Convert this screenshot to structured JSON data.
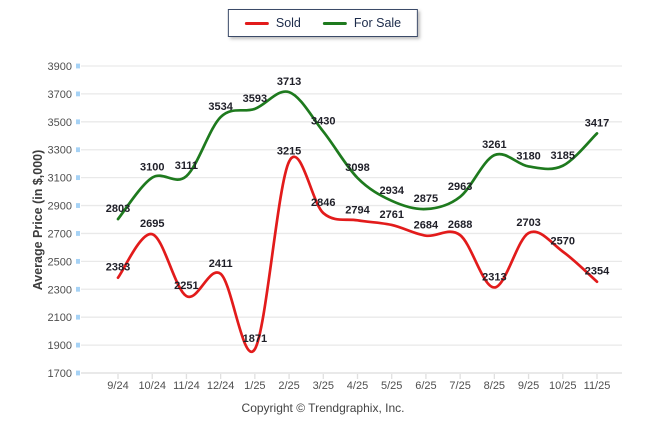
{
  "chart_data": {
    "type": "line",
    "title": "",
    "xlabel": "",
    "ylabel": "Average Price (in $,000)",
    "categories": [
      "9/24",
      "10/24",
      "11/24",
      "12/24",
      "1/25",
      "2/25",
      "3/25",
      "4/25",
      "5/25",
      "6/25",
      "7/25",
      "8/25",
      "9/25",
      "10/25",
      "11/25"
    ],
    "series": [
      {
        "name": "Sold",
        "color": "#e21b1b",
        "values": [
          2383,
          2695,
          2251,
          2411,
          1871,
          3215,
          2846,
          2794,
          2761,
          2684,
          2688,
          2313,
          2703,
          2570,
          2354
        ]
      },
      {
        "name": "For Sale",
        "color": "#1e7a1e",
        "values": [
          2803,
          3100,
          3111,
          3534,
          3593,
          3713,
          3430,
          3098,
          2934,
          2875,
          2963,
          3261,
          3180,
          3185,
          3417
        ]
      }
    ],
    "ylim": [
      1700,
      3900
    ],
    "yticks": [
      3900,
      3700,
      3500,
      3300,
      3100,
      2900,
      2700,
      2500,
      2300,
      2100,
      1900,
      1700
    ],
    "grid": true,
    "data_labels": true,
    "legend_position": "top-center"
  },
  "footer": {
    "copyright": "Copyright © Trendgraphix, Inc."
  },
  "colors": {
    "grid": "#e9e9e9",
    "axis_line": "#e6e6e6",
    "y_tick": "#a6d2f5",
    "x_tick": "#e0e0e0",
    "axis_text": "#4f4f4f",
    "data_label_text": "#1f1f28",
    "legend_border": "#3b4a68",
    "legend_text": "#1c2b4a",
    "background": "#ffffff"
  }
}
